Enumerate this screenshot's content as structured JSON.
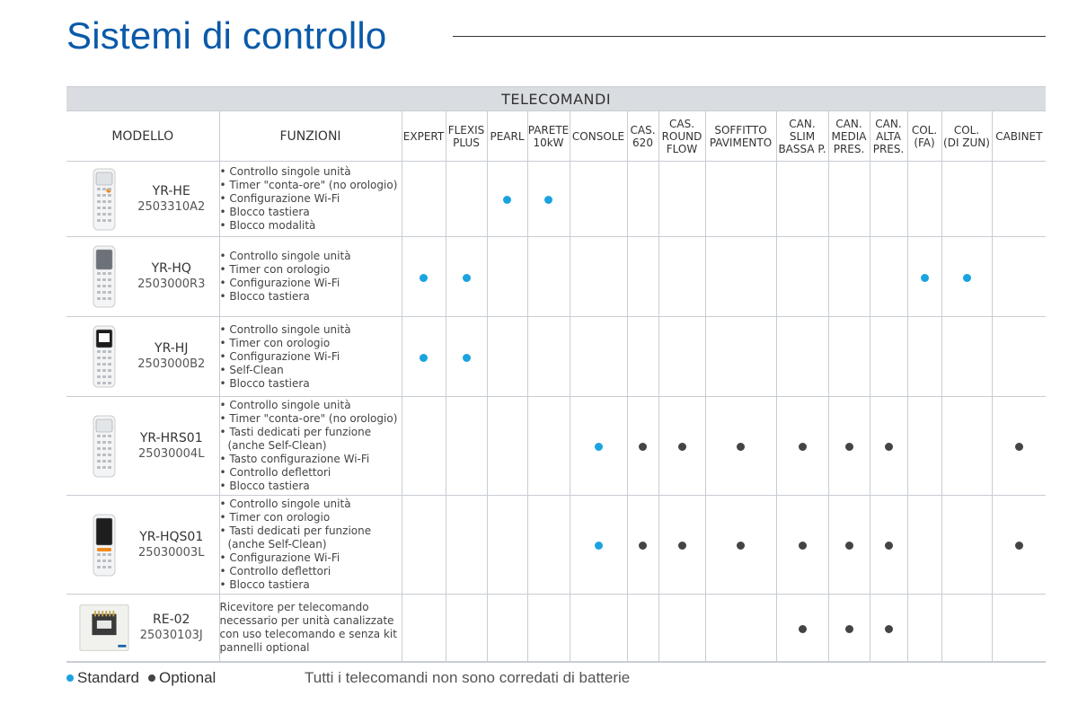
{
  "title": "Sistemi di controllo",
  "colors": {
    "title": "#0a5aa8",
    "standard": "#1ba3e0",
    "optional": "#444444",
    "banner_bg": "#d9dce0"
  },
  "table": {
    "banner": "TELECOMANDI",
    "headers": {
      "model": "MODELLO",
      "functions": "FUNZIONI",
      "units": [
        [
          "EXPERT"
        ],
        [
          "FLEXIS",
          "PLUS"
        ],
        [
          "PEARL"
        ],
        [
          "PARETE",
          "10kW"
        ],
        [
          "CONSOLE"
        ],
        [
          "CAS.",
          "620"
        ],
        [
          "CAS.",
          "ROUND",
          "FLOW"
        ],
        [
          "SOFFITTO",
          "PAVIMENTO"
        ],
        [
          "CAN.",
          "SLIM",
          "BASSA P."
        ],
        [
          "CAN.",
          "MEDIA",
          "PRES."
        ],
        [
          "CAN.",
          "ALTA",
          "PRES."
        ],
        [
          "COL.",
          "(FA)"
        ],
        [
          "COL.",
          "(DI ZUN)"
        ],
        [
          "CABINET"
        ]
      ]
    },
    "rows": [
      {
        "name": "YR-HE",
        "code": "2503310A2",
        "image": "remote-yr-he",
        "functions": [
          "Controllo singole unità",
          "Timer \"conta-ore\" (no orologio)",
          "Configurazione Wi-Fi",
          "Blocco tastiera",
          "Blocco modalità"
        ],
        "marks": [
          "",
          "",
          "standard",
          "standard",
          "",
          "",
          "",
          "",
          "",
          "",
          "",
          "",
          "",
          ""
        ]
      },
      {
        "name": "YR-HQ",
        "code": "2503000R3",
        "image": "remote-yr-hq",
        "functions": [
          "Controllo singole unità",
          "Timer con orologio",
          "Configurazione Wi-Fi",
          "Blocco tastiera"
        ],
        "marks": [
          "standard",
          "standard",
          "",
          "",
          "",
          "",
          "",
          "",
          "",
          "",
          "",
          "standard",
          "standard",
          ""
        ]
      },
      {
        "name": "YR-HJ",
        "code": "2503000B2",
        "image": "remote-yr-hj",
        "functions": [
          "Controllo singole unità",
          "Timer con orologio",
          "Configurazione Wi-Fi",
          "Self-Clean",
          "Blocco tastiera"
        ],
        "marks": [
          "standard",
          "standard",
          "",
          "",
          "",
          "",
          "",
          "",
          "",
          "",
          "",
          "",
          "",
          ""
        ]
      },
      {
        "name": "YR-HRS01",
        "code": "25030004L",
        "image": "remote-yr-hrs01",
        "functions": [
          "Controllo singole unità",
          "Timer \"conta-ore\" (no orologio)",
          "Tasti dedicati per funzione (anche Self-Clean)",
          "Tasto configurazione Wi-Fi",
          "Controllo deflettori",
          "Blocco tastiera"
        ],
        "marks": [
          "",
          "",
          "",
          "",
          "standard",
          "optional",
          "optional",
          "optional",
          "optional",
          "optional",
          "optional",
          "",
          "",
          "optional"
        ]
      },
      {
        "name": "YR-HQS01",
        "code": "25030003L",
        "image": "remote-yr-hqs01",
        "functions": [
          "Controllo singole unità",
          "Timer con orologio",
          "Tasti dedicati per funzione (anche Self-Clean)",
          "Configurazione Wi-Fi",
          "Controllo deflettori",
          "Blocco tastiera"
        ],
        "marks": [
          "",
          "",
          "",
          "",
          "standard",
          "optional",
          "optional",
          "optional",
          "optional",
          "optional",
          "optional",
          "",
          "",
          "optional"
        ]
      },
      {
        "name": "RE-02",
        "code": "25030103J",
        "image": "receiver-re-02",
        "description": "Ricevitore per telecomando necessario per unità canalizzate con uso telecomando e senza kit pannelli optional",
        "marks": [
          "",
          "",
          "",
          "",
          "",
          "",
          "",
          "",
          "optional",
          "optional",
          "optional",
          "",
          "",
          ""
        ]
      }
    ]
  },
  "legend": {
    "standard": "Standard",
    "optional": "Optional"
  },
  "note": "Tutti i telecomandi non sono corredati di batterie"
}
